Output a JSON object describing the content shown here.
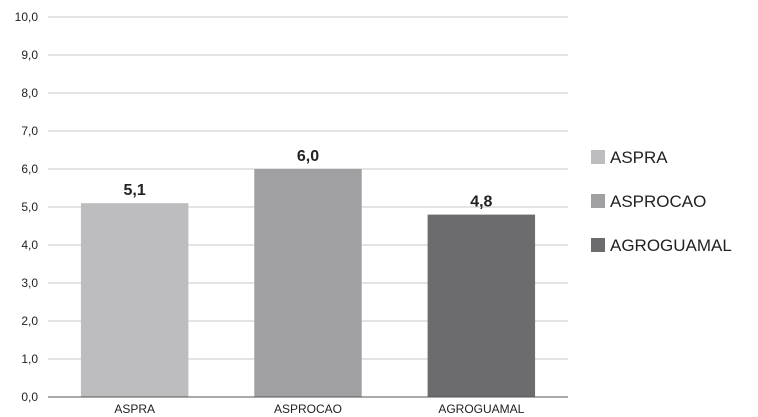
{
  "chart_data": {
    "type": "bar",
    "categories": [
      "ASPRA",
      "ASPROCAO",
      "AGROGUAMAL"
    ],
    "values": [
      5.1,
      6.0,
      4.8
    ],
    "value_labels": [
      "5,1",
      "6,0",
      "4,8"
    ],
    "title": "",
    "xlabel": "",
    "ylabel": "",
    "ylim": [
      0,
      10
    ],
    "yticks": [
      "0,0",
      "1,0",
      "2,0",
      "3,0",
      "4,0",
      "5,0",
      "6,0",
      "7,0",
      "8,0",
      "9,0",
      "10,0"
    ],
    "grid": true,
    "legend": {
      "placement": "right",
      "entries": [
        "ASPRA",
        "ASPROCAO",
        "AGROGUAMAL"
      ]
    },
    "colors": [
      "#bdbdbf",
      "#a0a0a3",
      "#6c6c6f"
    ]
  }
}
